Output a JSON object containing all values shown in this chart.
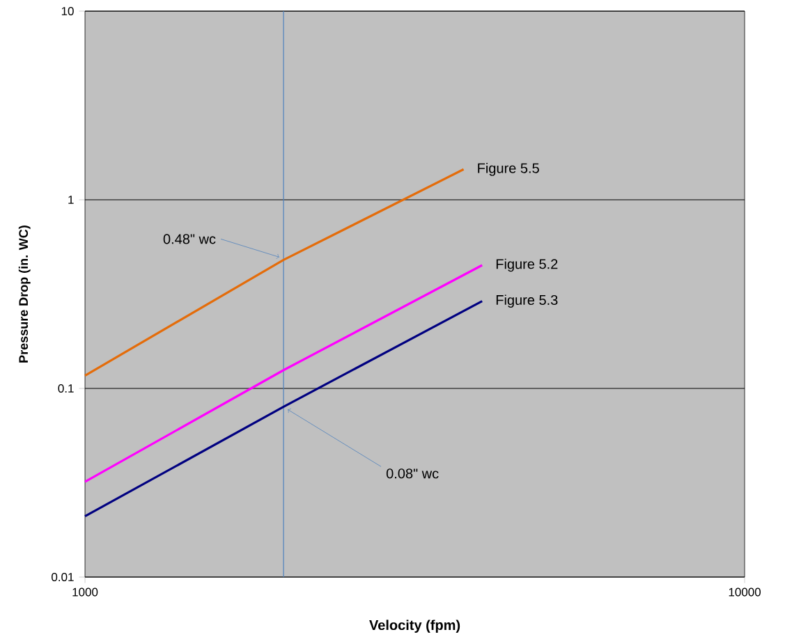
{
  "chart_data": {
    "type": "line",
    "xlabel": "Velocity (fpm)",
    "ylabel": "Pressure Drop (in. WC)",
    "log": "xy",
    "xlim": [
      1000,
      10000
    ],
    "ylim": [
      0.01,
      10
    ],
    "xticks": [
      1000,
      10000
    ],
    "yticks": [
      0.01,
      0.1,
      1,
      10
    ],
    "grid": "y",
    "marker": "none",
    "line_style": "solid",
    "series": [
      {
        "name": "Figure 5.5",
        "color": "#e46c0a",
        "x": [
          1000,
          2000,
          3750
        ],
        "values": [
          0.117,
          0.48,
          1.45
        ]
      },
      {
        "name": "Figure 5.2",
        "color": "#ff00ff",
        "x": [
          1000,
          2000,
          4000
        ],
        "values": [
          0.032,
          0.125,
          0.45
        ]
      },
      {
        "name": "Figure 5.3",
        "color": "#000080",
        "x": [
          1000,
          2000,
          4000
        ],
        "values": [
          0.021,
          0.08,
          0.29
        ]
      }
    ],
    "ref_lines": [
      {
        "axis": "x",
        "value": 2000,
        "color": "#4f81bd"
      }
    ],
    "annotations": [
      {
        "text": "0.48\" wc",
        "x": 2000,
        "y": 0.48
      },
      {
        "text": "0.08\" wc",
        "x": 2000,
        "y": 0.08
      }
    ]
  }
}
